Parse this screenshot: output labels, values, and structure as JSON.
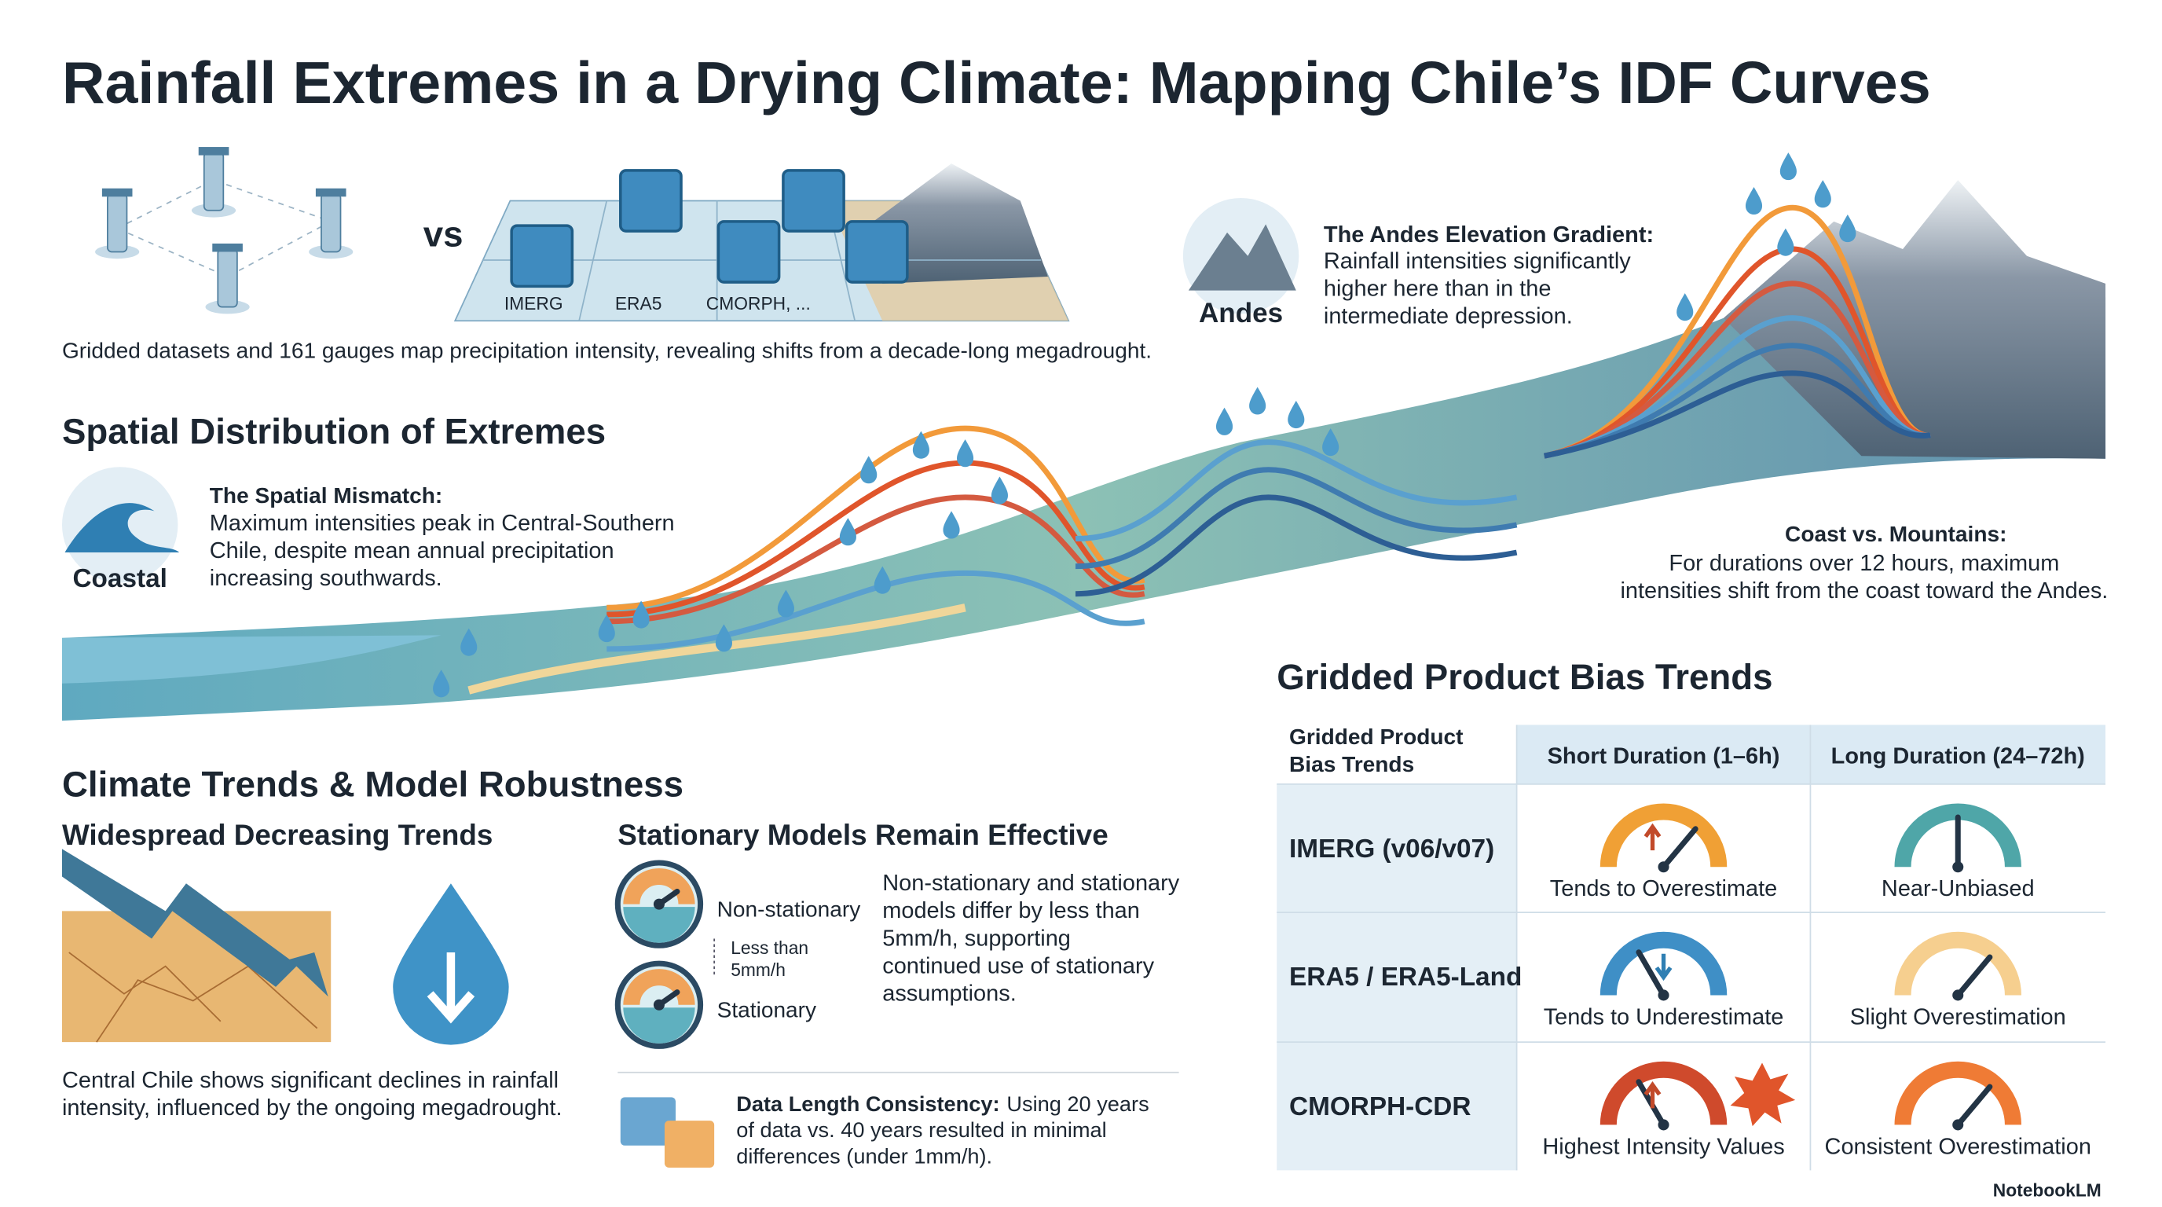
{
  "title": "Rainfall Extremes in a Drying Climate: Mapping Chile’s IDF Curves",
  "intro": {
    "vs": "vs",
    "dataset_labels": [
      "IMERG",
      "ERA5",
      "CMORPH, ..."
    ],
    "caption": "Gridded datasets and 161 gauges map precipitation intensity, revealing shifts from a decade-long megadrought."
  },
  "andes": {
    "label": "Andes",
    "heading": "The Andes Elevation Gradient:",
    "lines": [
      "Rainfall intensities significantly",
      "higher here than in the",
      "intermediate depression."
    ]
  },
  "spatial": {
    "heading": "Spatial Distribution of Extremes",
    "icon_label": "Coastal",
    "subheading": "The Spatial Mismatch:",
    "lines": [
      "Maximum intensities peak in Central-Southern",
      "Chile, despite mean annual precipitation",
      "increasing southwards."
    ]
  },
  "coast_mountains": {
    "heading": "Coast vs. Mountains:",
    "lines": [
      "For durations over 12 hours, maximum",
      "intensities shift from the coast toward the Andes."
    ]
  },
  "climate": {
    "heading": "Climate Trends & Model Robustness",
    "decreasing": {
      "heading": "Widespread Decreasing Trends",
      "lines": [
        "Central Chile shows significant declines in rainfall",
        "intensity, influenced by the ongoing megadrought."
      ]
    },
    "stationary": {
      "heading": "Stationary Models Remain Effective",
      "gauge_labels": [
        "Non-stationary",
        "Stationary"
      ],
      "diff_label": [
        "Less than",
        "5mm/h"
      ],
      "lines": [
        "Non-stationary and stationary",
        "models differ by less than",
        "5mm/h, supporting",
        "continued use of stationary",
        "assumptions."
      ]
    },
    "data_length": {
      "bold": "Data Length Consistency:",
      "lines": [
        "Using 20 years",
        "of data vs. 40 years resulted in minimal",
        "differences (under 1mm/h)."
      ]
    }
  },
  "bias_table": {
    "heading": "Gridded Product Bias Trends",
    "corner": [
      "Gridded Product",
      "Bias Trends"
    ],
    "columns": [
      "Short Duration (1–6h)",
      "Long Duration (24–72h)"
    ],
    "rows": [
      {
        "product": "IMERG (v06/v07)",
        "cells": [
          "Tends to Overestimate",
          "Near-Unbiased"
        ]
      },
      {
        "product": "ERA5 / ERA5-Land",
        "cells": [
          "Tends to Underestimate",
          "Slight Overestimation"
        ]
      },
      {
        "product": "CMORPH-CDR",
        "cells": [
          "Highest Intensity Values",
          "Consistent Overestimation"
        ]
      }
    ]
  },
  "footer": "NotebookLM"
}
